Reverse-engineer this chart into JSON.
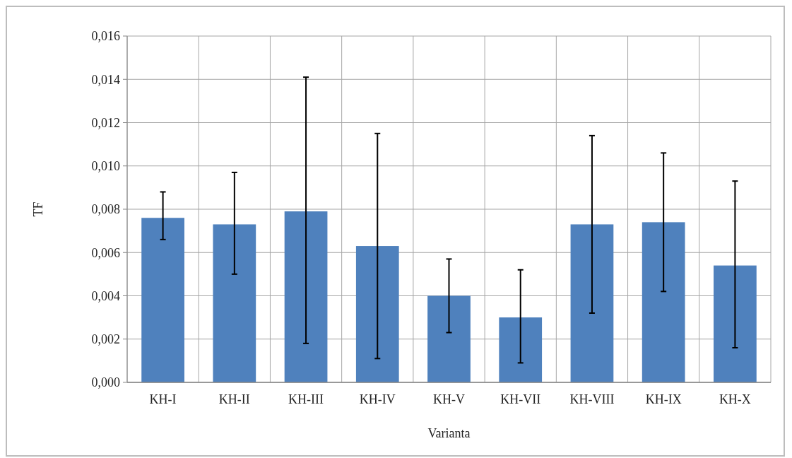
{
  "chart_data": {
    "type": "bar",
    "xlabel": "Varianta",
    "ylabel": "TF",
    "categories": [
      "KH-I",
      "KH-II",
      "KH-III",
      "KH-IV",
      "KH-V",
      "KH-VII",
      "KH-VIII",
      "KH-IX",
      "KH-X"
    ],
    "values": [
      0.0076,
      0.0073,
      0.0079,
      0.0063,
      0.004,
      0.003,
      0.0073,
      0.0074,
      0.0054
    ],
    "errors": [
      [
        0.0066,
        0.0088
      ],
      [
        0.005,
        0.0097
      ],
      [
        0.0018,
        0.0141
      ],
      [
        0.0011,
        0.0115
      ],
      [
        0.0023,
        0.0057
      ],
      [
        0.0009,
        0.0052
      ],
      [
        0.0032,
        0.0114
      ],
      [
        0.0042,
        0.0106
      ],
      [
        0.0016,
        0.0093
      ]
    ],
    "color": "#4f81bd",
    "ylim": [
      0,
      0.016
    ],
    "yticks": [
      {
        "value": 0,
        "label": "0,000"
      },
      {
        "value": 0.002,
        "label": "0,002"
      },
      {
        "value": 0.004,
        "label": "0,004"
      },
      {
        "value": 0.006,
        "label": "0,006"
      },
      {
        "value": 0.008,
        "label": "0,008"
      },
      {
        "value": 0.01,
        "label": "0,010"
      },
      {
        "value": 0.012,
        "label": "0,012"
      },
      {
        "value": 0.014,
        "label": "0,014"
      },
      {
        "value": 0.016,
        "label": "0,016"
      }
    ],
    "grid": true
  }
}
